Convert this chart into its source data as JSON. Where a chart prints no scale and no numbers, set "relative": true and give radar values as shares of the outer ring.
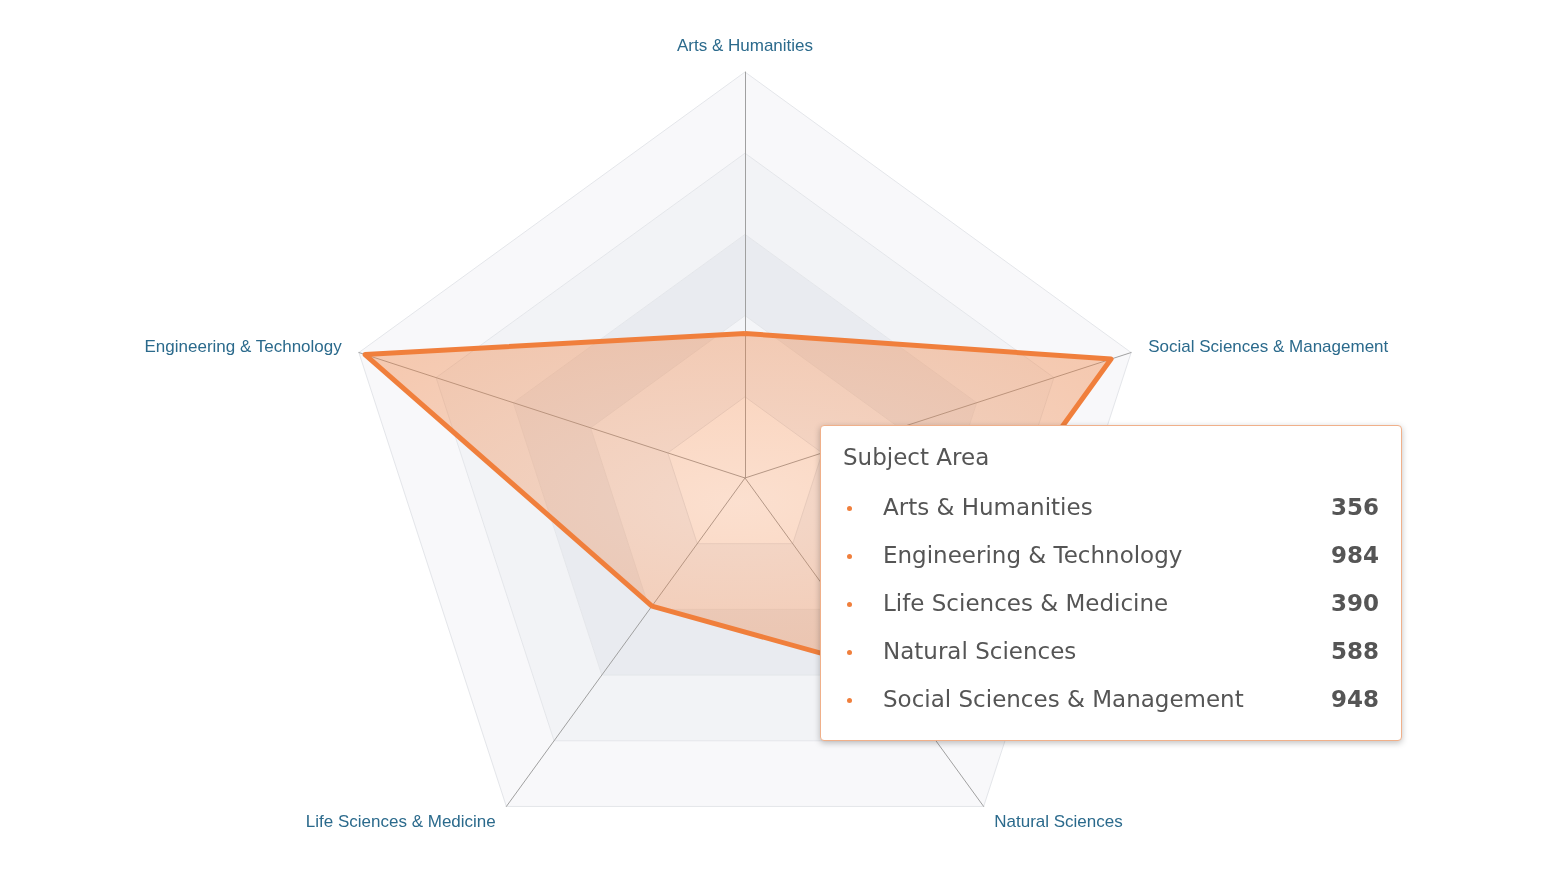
{
  "chart_data": [
    {
      "type": "radar",
      "relative": true,
      "categories": [
        "Arts & Humanities",
        "Social Sciences & Management",
        "Natural Sciences",
        "Life Sciences & Medicine",
        "Engineering & Technology"
      ],
      "series": [
        {
          "color": "#f07f3c",
          "values": [
            0.356,
            0.948,
            0.588,
            0.39,
            0.984
          ]
        }
      ]
    },
    {
      "type": "other",
      "title": "Subject Area",
      "categories": [
        "Arts & Humanities",
        "Engineering & Technology",
        "Life Sciences & Medicine",
        "Natural Sciences",
        "Social Sciences & Management"
      ],
      "values": [
        356,
        984,
        390,
        588,
        948
      ],
      "data_labels": true
    }
  ]
}
